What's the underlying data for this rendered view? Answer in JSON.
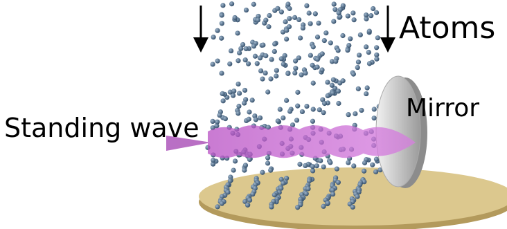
{
  "labels": {
    "atoms": "Atoms",
    "standing_wave": "Standing wave",
    "mirror": "Mirror"
  }
}
